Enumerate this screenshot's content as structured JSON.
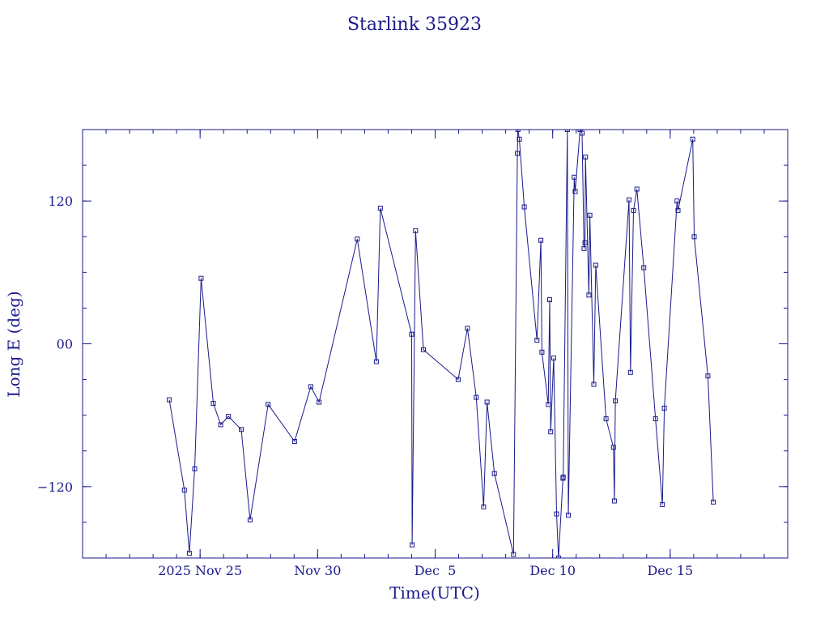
{
  "chart_data": {
    "type": "line",
    "title": "Starlink 35923",
    "xlabel": "Time(UTC)",
    "ylabel": "Long E (deg)",
    "x_unit": "date (2025, UTC)",
    "xlim": [
      "2025-11-20T00:00",
      "2025-12-20T00:00"
    ],
    "ylim": [
      -180,
      180
    ],
    "x_ticks": [
      {
        "x": "2025-11-25",
        "label": "2025 Nov 25"
      },
      {
        "x": "2025-11-30",
        "label": "Nov 30"
      },
      {
        "x": "2025-12-05",
        "label": "Dec  5"
      },
      {
        "x": "2025-12-10",
        "label": "Dec 10"
      },
      {
        "x": "2025-12-15",
        "label": "Dec 15"
      }
    ],
    "y_ticks": [
      {
        "y": 120,
        "label": "120"
      },
      {
        "y": 0,
        "label": "00"
      },
      {
        "y": -120,
        "label": "−120"
      }
    ],
    "grid": false,
    "marker": "open square",
    "color": "#1a1a8c",
    "series": [
      {
        "x": [
          "2025-11-23T16:30",
          "2025-11-24T08:00",
          "2025-11-24T13:00",
          "2025-11-24T18:30",
          "2025-11-25T01:00",
          "2025-11-25T13:30",
          "2025-11-25T21:00",
          "2025-11-26T05:00",
          "2025-11-26T18:00",
          "2025-11-27T03:00",
          "2025-11-27T21:30",
          "2025-11-29T00:30",
          "2025-11-29T17:00",
          "2025-11-30T01:30",
          "2025-12-01T16:30",
          "2025-12-02T12:00",
          "2025-12-02T16:00",
          "2025-12-04T00:00",
          "2025-12-04T00:30",
          "2025-12-04T04:00",
          "2025-12-04T12:00",
          "2025-12-05T23:30",
          "2025-12-06T09:00",
          "2025-12-06T18:00",
          "2025-12-07T01:30",
          "2025-12-07T05:00",
          "2025-12-07T12:30",
          "2025-12-08T08:00",
          "2025-12-08T12:00",
          "2025-12-08T12:30",
          "2025-12-08T14:00",
          "2025-12-08T19:00",
          "2025-12-09T08:00",
          "2025-12-09T12:00",
          "2025-12-09T13:00",
          "2025-12-09T19:30",
          "2025-12-09T21:00",
          "2025-12-09T22:00",
          "2025-12-10T01:00",
          "2025-12-10T04:00",
          "2025-12-10T06:00",
          "2025-12-10T10:30",
          "2025-12-10T10:45",
          "2025-12-10T15:00",
          "2025-12-10T16:00",
          "2025-12-10T22:00",
          "2025-12-10T23:00",
          "2025-12-11T04:00",
          "2025-12-11T06:00",
          "2025-12-11T08:00",
          "2025-12-11T09:00",
          "2025-12-11T09:30",
          "2025-12-11T13:00",
          "2025-12-11T14:00",
          "2025-12-11T18:00",
          "2025-12-11T20:00",
          "2025-12-12T06:30",
          "2025-12-12T14:00",
          "2025-12-12T15:00",
          "2025-12-12T16:00",
          "2025-12-13T06:00",
          "2025-12-13T07:30",
          "2025-12-13T10:30",
          "2025-12-13T14:00",
          "2025-12-13T21:00",
          "2025-12-14T09:00",
          "2025-12-14T16:00",
          "2025-12-14T18:00",
          "2025-12-15T07:00",
          "2025-12-15T08:00",
          "2025-12-15T23:00",
          "2025-12-16T00:30",
          "2025-12-16T14:30",
          "2025-12-16T20:00"
        ],
        "y": [
          -47,
          -123,
          -176,
          -105,
          55,
          -50,
          -68,
          -61,
          -72,
          -148,
          -51,
          -82,
          -36,
          -49,
          88,
          -15,
          114,
          8,
          -169,
          95,
          -5,
          -30,
          13,
          -45,
          -137,
          -49,
          -109,
          -177,
          160,
          180,
          172,
          115,
          3,
          87,
          -7,
          -51,
          37,
          -74,
          -12,
          -143,
          -180,
          -113,
          -112,
          180,
          -144,
          140,
          128,
          180,
          177,
          80,
          85,
          157,
          41,
          108,
          -34,
          66,
          -63,
          -87,
          -132,
          -48,
          121,
          -24,
          112,
          130,
          64,
          -63,
          -135,
          -54,
          120,
          112,
          172,
          90,
          -27,
          -133
        ]
      }
    ]
  }
}
